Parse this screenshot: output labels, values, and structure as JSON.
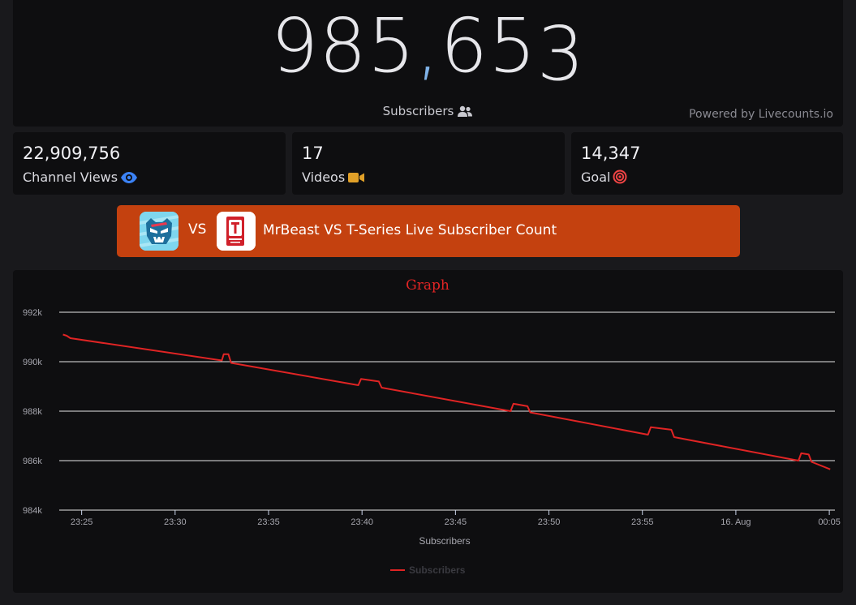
{
  "hero": {
    "count_main": "985,65",
    "count_last": "3",
    "subscribers_label": "Subscribers",
    "powered_by": "Powered by Livecounts.io"
  },
  "stats": {
    "views": {
      "value": "22,909,756",
      "label": "Channel Views",
      "icon": "eye-icon",
      "icon_color": "#3b82f6"
    },
    "videos": {
      "value": "17",
      "label": "Videos",
      "icon": "video-camera-icon",
      "icon_color": "#e0a028"
    },
    "goal": {
      "value": "14,347",
      "label": "Goal",
      "icon": "target-icon",
      "icon_color": "#ef4444"
    }
  },
  "banner": {
    "vs": "VS",
    "title": "MrBeast VS T-Series Live Subscriber Count",
    "color": "#c4410f"
  },
  "chart_data": {
    "type": "line",
    "title": "Graph",
    "xlabel": "Subscribers",
    "ylabel": "",
    "ylim": [
      984000,
      992000
    ],
    "yticks": [
      {
        "value": 984000,
        "label": "984k"
      },
      {
        "value": 986000,
        "label": "986k"
      },
      {
        "value": 988000,
        "label": "988k"
      },
      {
        "value": 990000,
        "label": "990k"
      },
      {
        "value": 992000,
        "label": "992k"
      }
    ],
    "xlim": [
      23.8,
      65.3
    ],
    "xticks": [
      {
        "value": 25,
        "label": "23:25"
      },
      {
        "value": 30,
        "label": "23:30"
      },
      {
        "value": 35,
        "label": "23:35"
      },
      {
        "value": 40,
        "label": "23:40"
      },
      {
        "value": 45,
        "label": "23:45"
      },
      {
        "value": 50,
        "label": "23:50"
      },
      {
        "value": 55,
        "label": "23:55"
      },
      {
        "value": 60,
        "label": "16. Aug"
      },
      {
        "value": 65,
        "label": "00:05"
      }
    ],
    "series": [
      {
        "name": "Subscribers",
        "color": "#e02424",
        "x": [
          24.0,
          24.2,
          24.4,
          32.5,
          32.6,
          32.85,
          33.0,
          39.8,
          39.95,
          40.9,
          41.05,
          47.95,
          48.1,
          48.85,
          49.0,
          55.3,
          55.45,
          56.55,
          56.7,
          63.35,
          63.5,
          63.9,
          64.05,
          65.05
        ],
        "values": [
          991100,
          991050,
          990950,
          990050,
          990300,
          990300,
          989950,
          989050,
          989300,
          989200,
          988950,
          988000,
          988300,
          988200,
          987950,
          987050,
          987350,
          987250,
          986950,
          986000,
          986300,
          986250,
          985950,
          985650
        ]
      }
    ],
    "legend": "bottom-center",
    "grid": true
  }
}
